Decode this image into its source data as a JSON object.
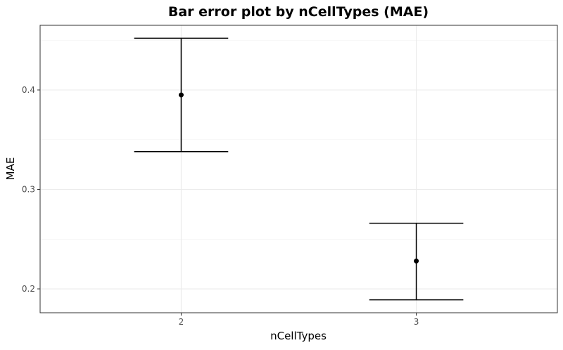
{
  "chart_data": {
    "type": "errorbar",
    "title": "Bar error plot by nCellTypes (MAE)",
    "xlabel": "nCellTypes",
    "ylabel": "MAE",
    "categories": [
      "2",
      "3"
    ],
    "points": [
      {
        "x": "2",
        "mean": 0.395,
        "lower": 0.338,
        "upper": 0.452
      },
      {
        "x": "3",
        "mean": 0.228,
        "lower": 0.189,
        "upper": 0.266
      }
    ],
    "ylim": [
      0.176,
      0.465
    ],
    "yticks": [
      0.2,
      0.3,
      0.4
    ],
    "ytick_labels": [
      "0.2",
      "0.3",
      "0.4"
    ],
    "grid": true,
    "legend": "none",
    "colors": {
      "marks": "#000000",
      "grid": "#ebebeb",
      "border": "#333333"
    }
  }
}
